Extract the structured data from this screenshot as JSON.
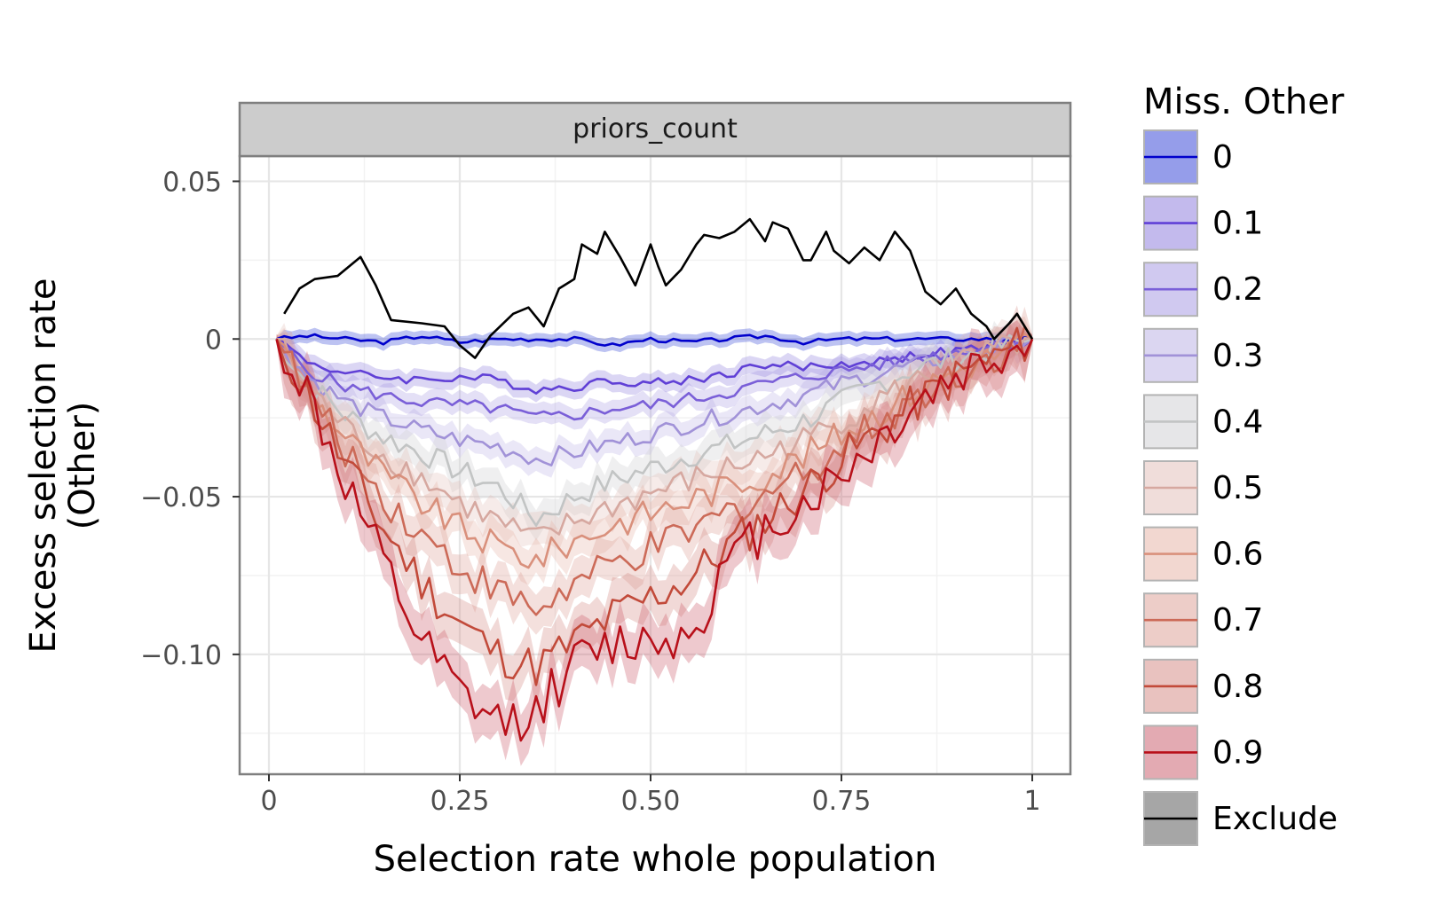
{
  "chart_data": {
    "type": "line",
    "facet_title": "priors_count",
    "xlabel": "Selection rate whole population",
    "ylabel_lines": [
      "Excess selection rate",
      "(Other)"
    ],
    "xlim": [
      0,
      1
    ],
    "ylim": [
      -0.138,
      0.058
    ],
    "x_ticks": [
      0,
      0.25,
      0.5,
      0.75,
      1
    ],
    "x_tick_labels": [
      "0",
      "0.25",
      "0.50",
      "0.75",
      "1"
    ],
    "y_ticks": [
      0.05,
      0,
      -0.05,
      -0.1
    ],
    "y_tick_labels": [
      "0.05",
      "0",
      "−0.05",
      "−0.10"
    ],
    "grid": true,
    "legend": {
      "title": "Miss. Other",
      "position": "right",
      "entries": [
        "0",
        "0.1",
        "0.2",
        "0.3",
        "0.4",
        "0.5",
        "0.6",
        "0.7",
        "0.8",
        "0.9",
        "Exclude"
      ]
    },
    "series": [
      {
        "name": "0",
        "color": "#0000cc",
        "band_color": "#3344d6",
        "band_alpha": 0.32,
        "x": [
          0.01,
          0.05,
          0.1,
          0.15,
          0.2,
          0.25,
          0.3,
          0.35,
          0.4,
          0.45,
          0.5,
          0.55,
          0.6,
          0.65,
          0.7,
          0.75,
          0.8,
          0.85,
          0.9,
          0.95,
          1.0
        ],
        "y": [
          0,
          0.001,
          0,
          -0.001,
          0.001,
          -0.001,
          0,
          0,
          0,
          -0.002,
          0,
          -0.001,
          0,
          0.001,
          -0.001,
          0,
          0,
          0,
          0,
          0,
          0
        ]
      },
      {
        "name": "0.1",
        "color": "#6040d6",
        "band_color": "#8876dc",
        "band_alpha": 0.3,
        "x": [
          0.01,
          0.05,
          0.1,
          0.15,
          0.2,
          0.25,
          0.3,
          0.35,
          0.4,
          0.45,
          0.5,
          0.55,
          0.6,
          0.65,
          0.7,
          0.75,
          0.8,
          0.85,
          0.9,
          0.95,
          1.0
        ],
        "y": [
          0,
          -0.007,
          -0.011,
          -0.012,
          -0.013,
          -0.012,
          -0.013,
          -0.016,
          -0.015,
          -0.013,
          -0.014,
          -0.013,
          -0.011,
          -0.008,
          -0.009,
          -0.008,
          -0.007,
          -0.005,
          -0.004,
          -0.002,
          0
        ]
      },
      {
        "name": "0.2",
        "color": "#7a5fd8",
        "band_color": "#9d8ee0",
        "band_alpha": 0.28,
        "x": [
          0.01,
          0.05,
          0.1,
          0.15,
          0.2,
          0.25,
          0.3,
          0.35,
          0.4,
          0.45,
          0.5,
          0.55,
          0.6,
          0.65,
          0.7,
          0.75,
          0.8,
          0.85,
          0.9,
          0.95,
          1.0
        ],
        "y": [
          0,
          -0.01,
          -0.015,
          -0.018,
          -0.02,
          -0.021,
          -0.022,
          -0.025,
          -0.024,
          -0.022,
          -0.021,
          -0.019,
          -0.017,
          -0.014,
          -0.012,
          -0.01,
          -0.008,
          -0.006,
          -0.004,
          -0.002,
          0
        ]
      },
      {
        "name": "0.3",
        "color": "#a192d8",
        "band_color": "#b4aae2",
        "band_alpha": 0.28,
        "x": [
          0.01,
          0.05,
          0.1,
          0.15,
          0.2,
          0.25,
          0.3,
          0.35,
          0.4,
          0.45,
          0.5,
          0.55,
          0.6,
          0.65,
          0.7,
          0.75,
          0.8,
          0.85,
          0.9,
          0.95,
          1.0
        ],
        "y": [
          0,
          -0.012,
          -0.02,
          -0.025,
          -0.029,
          -0.032,
          -0.034,
          -0.038,
          -0.036,
          -0.033,
          -0.03,
          -0.027,
          -0.024,
          -0.021,
          -0.018,
          -0.014,
          -0.011,
          -0.008,
          -0.005,
          -0.003,
          0
        ]
      },
      {
        "name": "0.4",
        "color": "#c2c4c4",
        "band_color": "#d4d4d8",
        "band_alpha": 0.38,
        "x": [
          0.01,
          0.05,
          0.1,
          0.15,
          0.2,
          0.25,
          0.3,
          0.35,
          0.4,
          0.45,
          0.5,
          0.55,
          0.6,
          0.65,
          0.7,
          0.75,
          0.8,
          0.85,
          0.9,
          0.95,
          1.0
        ],
        "y": [
          0,
          -0.014,
          -0.024,
          -0.031,
          -0.036,
          -0.042,
          -0.047,
          -0.057,
          -0.05,
          -0.045,
          -0.041,
          -0.037,
          -0.034,
          -0.03,
          -0.026,
          -0.02,
          -0.014,
          -0.009,
          -0.006,
          -0.003,
          0
        ]
      },
      {
        "name": "0.5",
        "color": "#d6a8a0",
        "band_color": "#e2bcb6",
        "band_alpha": 0.3,
        "x": [
          0.01,
          0.05,
          0.1,
          0.15,
          0.2,
          0.25,
          0.3,
          0.35,
          0.4,
          0.45,
          0.5,
          0.55,
          0.6,
          0.65,
          0.7,
          0.75,
          0.8,
          0.85,
          0.9,
          0.95,
          1.0
        ],
        "y": [
          0,
          -0.015,
          -0.028,
          -0.037,
          -0.044,
          -0.052,
          -0.058,
          -0.064,
          -0.058,
          -0.053,
          -0.049,
          -0.045,
          -0.041,
          -0.037,
          -0.032,
          -0.026,
          -0.019,
          -0.013,
          -0.008,
          -0.004,
          0
        ]
      },
      {
        "name": "0.6",
        "color": "#d9907c",
        "band_color": "#e6b0a2",
        "band_alpha": 0.3,
        "x": [
          0.01,
          0.05,
          0.1,
          0.15,
          0.2,
          0.25,
          0.3,
          0.35,
          0.4,
          0.45,
          0.5,
          0.55,
          0.6,
          0.65,
          0.7,
          0.75,
          0.8,
          0.85,
          0.9,
          0.95,
          1.0
        ],
        "y": [
          0,
          -0.016,
          -0.031,
          -0.043,
          -0.052,
          -0.06,
          -0.066,
          -0.07,
          -0.064,
          -0.059,
          -0.055,
          -0.051,
          -0.047,
          -0.043,
          -0.037,
          -0.03,
          -0.023,
          -0.016,
          -0.01,
          -0.005,
          0
        ]
      },
      {
        "name": "0.7",
        "color": "#cc6a58",
        "band_color": "#dca096",
        "band_alpha": 0.32,
        "x": [
          0.01,
          0.05,
          0.1,
          0.15,
          0.2,
          0.25,
          0.3,
          0.35,
          0.4,
          0.45,
          0.5,
          0.55,
          0.6,
          0.65,
          0.7,
          0.75,
          0.8,
          0.85,
          0.9,
          0.95,
          1.0
        ],
        "y": [
          0,
          -0.017,
          -0.035,
          -0.05,
          -0.062,
          -0.072,
          -0.08,
          -0.086,
          -0.078,
          -0.072,
          -0.067,
          -0.062,
          -0.055,
          -0.049,
          -0.042,
          -0.034,
          -0.026,
          -0.018,
          -0.011,
          -0.005,
          0
        ]
      },
      {
        "name": "0.8",
        "color": "#c24a3a",
        "band_color": "#d48a84",
        "band_alpha": 0.32,
        "x": [
          0.01,
          0.05,
          0.1,
          0.15,
          0.2,
          0.25,
          0.3,
          0.35,
          0.4,
          0.45,
          0.5,
          0.55,
          0.6,
          0.65,
          0.7,
          0.75,
          0.8,
          0.85,
          0.9,
          0.95,
          1.0
        ],
        "y": [
          0,
          -0.017,
          -0.04,
          -0.06,
          -0.077,
          -0.09,
          -0.1,
          -0.104,
          -0.096,
          -0.088,
          -0.082,
          -0.076,
          -0.066,
          -0.057,
          -0.048,
          -0.038,
          -0.029,
          -0.02,
          -0.012,
          -0.006,
          0
        ]
      },
      {
        "name": "0.9",
        "color": "#b8101a",
        "band_color": "#cc6270",
        "band_alpha": 0.34,
        "x": [
          0.01,
          0.05,
          0.1,
          0.15,
          0.2,
          0.25,
          0.3,
          0.35,
          0.4,
          0.45,
          0.5,
          0.55,
          0.6,
          0.65,
          0.7,
          0.75,
          0.8,
          0.85,
          0.9,
          0.95,
          1.0
        ],
        "y": [
          0,
          -0.017,
          -0.046,
          -0.072,
          -0.097,
          -0.113,
          -0.122,
          -0.118,
          -0.103,
          -0.097,
          -0.095,
          -0.094,
          -0.072,
          -0.06,
          -0.052,
          -0.043,
          -0.032,
          -0.02,
          -0.012,
          -0.006,
          0
        ]
      },
      {
        "name": "Exclude",
        "color": "#000000",
        "band_color": "#808080",
        "band_alpha": 0.5,
        "x": [
          0.02,
          0.04,
          0.06,
          0.09,
          0.12,
          0.14,
          0.16,
          0.2,
          0.23,
          0.25,
          0.27,
          0.29,
          0.32,
          0.34,
          0.36,
          0.38,
          0.4,
          0.41,
          0.43,
          0.44,
          0.46,
          0.48,
          0.5,
          0.51,
          0.52,
          0.54,
          0.56,
          0.57,
          0.59,
          0.61,
          0.63,
          0.65,
          0.66,
          0.68,
          0.7,
          0.71,
          0.73,
          0.74,
          0.76,
          0.78,
          0.8,
          0.82,
          0.84,
          0.86,
          0.88,
          0.9,
          0.92,
          0.94,
          0.95,
          0.97,
          0.98,
          1.0
        ],
        "y": [
          0.008,
          0.016,
          0.019,
          0.02,
          0.026,
          0.017,
          0.006,
          0.005,
          0.004,
          -0.002,
          -0.006,
          0.001,
          0.008,
          0.01,
          0.004,
          0.016,
          0.019,
          0.03,
          0.027,
          0.034,
          0.026,
          0.017,
          0.03,
          0.023,
          0.017,
          0.022,
          0.03,
          0.033,
          0.032,
          0.034,
          0.038,
          0.031,
          0.037,
          0.035,
          0.025,
          0.025,
          0.034,
          0.028,
          0.024,
          0.029,
          0.025,
          0.034,
          0.028,
          0.015,
          0.011,
          0.016,
          0.008,
          0.004,
          0.0,
          0.005,
          0.008,
          0.0
        ]
      }
    ]
  }
}
